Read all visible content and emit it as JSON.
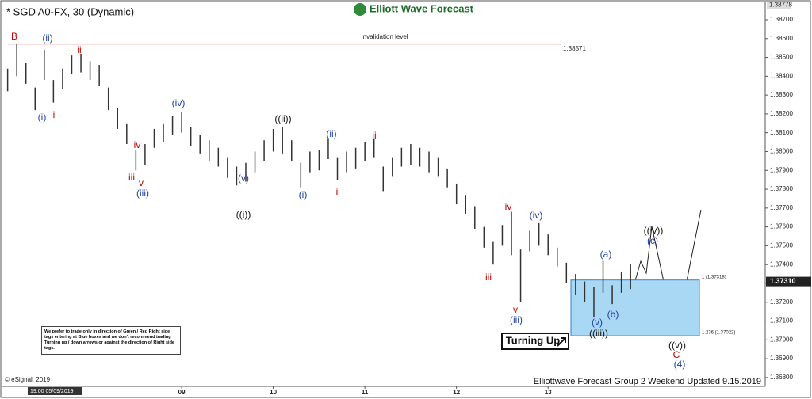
{
  "chart_data": {
    "type": "ohlc",
    "title": "* SGD A0-FX, 30 (Dynamic)",
    "brand": "Elliott Wave Forecast",
    "footer": "Elliottwave Forecast Group 2 Weekend Updated 9.15.2019",
    "copyright": "© eSignal, 2019",
    "cursor_label": "19:00 05/09/2019",
    "note": "We prefer to trade only in direction of Green / Red Right side tags entering at Blue boxes and we don't recommend trading Turning up / down arrows or against the direction of Right side tags.",
    "turning_label": "Turning Up",
    "color": "#333333",
    "x": [
      7.1,
      7.2,
      7.3,
      7.4,
      7.5,
      7.6,
      7.7,
      7.8,
      7.9,
      8.0,
      8.1,
      8.2,
      8.3,
      8.4,
      8.5,
      8.6,
      8.7,
      8.8,
      8.9,
      9.0,
      9.1,
      9.2,
      9.3,
      9.4,
      9.5,
      9.6,
      9.7,
      9.8,
      9.9,
      10.0,
      10.1,
      10.2,
      10.3,
      10.4,
      10.5,
      10.6,
      10.7,
      10.8,
      10.9,
      11.0,
      11.1,
      11.2,
      11.3,
      11.4,
      11.5,
      11.6,
      11.7,
      11.8,
      11.9,
      12.0,
      12.1,
      12.2,
      12.3,
      12.4,
      12.5,
      12.6,
      12.7,
      12.8,
      12.9,
      13.0,
      13.1,
      13.2,
      13.3,
      13.4,
      13.5,
      13.6,
      13.7,
      13.8,
      13.9
    ],
    "highs": [
      1.3844,
      1.3857,
      1.3847,
      1.3834,
      1.3854,
      1.3838,
      1.3844,
      1.3851,
      1.3852,
      1.3848,
      1.3846,
      1.3834,
      1.3823,
      1.3815,
      1.3801,
      1.3804,
      1.3812,
      1.3815,
      1.3819,
      1.3821,
      1.3813,
      1.3809,
      1.3806,
      1.3802,
      1.3797,
      1.3792,
      1.3794,
      1.38,
      1.3806,
      1.3812,
      1.3813,
      1.3806,
      1.3794,
      1.38,
      1.3801,
      1.3807,
      1.3797,
      1.38,
      1.3802,
      1.3805,
      1.3807,
      1.3792,
      1.3797,
      1.3802,
      1.3804,
      1.3802,
      1.38,
      1.3797,
      1.3791,
      1.3783,
      1.3777,
      1.3771,
      1.376,
      1.3752,
      1.3761,
      1.3768,
      1.3748,
      1.3758,
      1.3762,
      1.3756,
      1.3749,
      1.3741,
      1.3735,
      1.3731,
      1.3728,
      1.3742,
      1.3729,
      1.3736,
      1.374
    ],
    "lows": [
      1.3832,
      1.384,
      1.3836,
      1.3822,
      1.3838,
      1.3826,
      1.3833,
      1.3841,
      1.3842,
      1.3838,
      1.3835,
      1.3822,
      1.3812,
      1.3804,
      1.379,
      1.3793,
      1.3802,
      1.3805,
      1.3809,
      1.381,
      1.3803,
      1.3799,
      1.3795,
      1.3792,
      1.3786,
      1.3782,
      1.3784,
      1.3789,
      1.3795,
      1.38,
      1.3799,
      1.3795,
      1.3781,
      1.3789,
      1.379,
      1.3796,
      1.3785,
      1.3789,
      1.3791,
      1.3795,
      1.3797,
      1.3779,
      1.3787,
      1.3792,
      1.3793,
      1.3792,
      1.3789,
      1.3787,
      1.3781,
      1.3772,
      1.3767,
      1.3759,
      1.3749,
      1.374,
      1.375,
      1.3745,
      1.372,
      1.3747,
      1.375,
      1.3745,
      1.3739,
      1.373,
      1.3724,
      1.372,
      1.3712,
      1.3725,
      1.3719,
      1.3725,
      1.3727
    ],
    "xlim": [
      7.06,
      15.37
    ],
    "xticks": [
      {
        "value": 9,
        "label": "09"
      },
      {
        "value": 10,
        "label": "10"
      },
      {
        "value": 11,
        "label": "11"
      },
      {
        "value": 12,
        "label": "12"
      },
      {
        "value": 13,
        "label": "13"
      }
    ],
    "ylim": [
      1.36766,
      1.38784
    ],
    "yticks": [
      {
        "value": 1.387,
        "label": "1.38700"
      },
      {
        "value": 1.386,
        "label": "1.38600"
      },
      {
        "value": 1.385,
        "label": "1.38500"
      },
      {
        "value": 1.384,
        "label": "1.38400"
      },
      {
        "value": 1.383,
        "label": "1.38300"
      },
      {
        "value": 1.382,
        "label": "1.38200"
      },
      {
        "value": 1.381,
        "label": "1.38100"
      },
      {
        "value": 1.38,
        "label": "1.38000"
      },
      {
        "value": 1.379,
        "label": "1.37900"
      },
      {
        "value": 1.378,
        "label": "1.37800"
      },
      {
        "value": 1.377,
        "label": "1.37700"
      },
      {
        "value": 1.376,
        "label": "1.37600"
      },
      {
        "value": 1.375,
        "label": "1.37500"
      },
      {
        "value": 1.374,
        "label": "1.37400"
      },
      {
        "value": 1.373,
        "label": "1.37300"
      },
      {
        "value": 1.372,
        "label": "1.37200"
      },
      {
        "value": 1.371,
        "label": "1.37100"
      },
      {
        "value": 1.37,
        "label": "1.37000"
      },
      {
        "value": 1.369,
        "label": "1.36900"
      },
      {
        "value": 1.368,
        "label": "1.36800"
      }
    ],
    "top_price": {
      "value": 1.38778,
      "label": "1.38778"
    },
    "last_price": {
      "value": 1.3731,
      "label": "1.37310"
    },
    "invalidation": {
      "value": 1.38571,
      "label": "1.38571",
      "title": "Invalidation level",
      "color": "#c00000"
    },
    "box": {
      "top": 1.37318,
      "bottom": 1.37022,
      "top_label": "1 (1.37318)",
      "bottom_label": "1.236 (1.37022)",
      "color": "#a9d8f5"
    },
    "annotations": [
      {
        "text": "B",
        "color": "#c00000"
      },
      {
        "text": "(ii)",
        "color": "#1f3fa6"
      },
      {
        "text": "ii",
        "color": "#c00000"
      },
      {
        "text": "(i)",
        "color": "#1f3fa6"
      },
      {
        "text": "i",
        "color": "#c00000"
      },
      {
        "text": "(iv)",
        "color": "#1f3fa6"
      },
      {
        "text": "iv",
        "color": "#c00000"
      },
      {
        "text": "iii",
        "color": "#c00000"
      },
      {
        "text": "v",
        "color": "#c00000"
      },
      {
        "text": "(iii)",
        "color": "#1f3fa6"
      },
      {
        "text": "((ii))",
        "color": "#111111"
      },
      {
        "text": "(v)",
        "color": "#1f3fa6"
      },
      {
        "text": "((i))",
        "color": "#111111"
      },
      {
        "text": "(ii)",
        "color": "#1f3fa6"
      },
      {
        "text": "ii",
        "color": "#c00000"
      },
      {
        "text": "(i)",
        "color": "#1f3fa6"
      },
      {
        "text": "i",
        "color": "#c00000"
      },
      {
        "text": "iv",
        "color": "#c00000"
      },
      {
        "text": "(iv)",
        "color": "#1f3fa6"
      },
      {
        "text": "iii",
        "color": "#c00000"
      },
      {
        "text": "v",
        "color": "#c00000"
      },
      {
        "text": "(iii)",
        "color": "#1f3fa6"
      },
      {
        "text": "(a)",
        "color": "#1f3fa6"
      },
      {
        "text": "(b)",
        "color": "#1f3fa6"
      },
      {
        "text": "(v)",
        "color": "#1f3fa6"
      },
      {
        "text": "((iii))",
        "color": "#111111"
      },
      {
        "text": "((iv))",
        "color": "#111111"
      },
      {
        "text": "(c)",
        "color": "#1f3fa6"
      },
      {
        "text": "((v))",
        "color": "#111111"
      },
      {
        "text": "C",
        "color": "#c00000"
      },
      {
        "text": "(4)",
        "color": "#1f3fa6"
      }
    ]
  }
}
